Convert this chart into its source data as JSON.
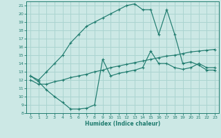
{
  "xlabel": "Humidex (Indice chaleur)",
  "background_color": "#cce8e5",
  "grid_color": "#aad4d0",
  "line_color": "#1f7b6e",
  "xlim": [
    -0.5,
    23.5
  ],
  "ylim": [
    8,
    21.5
  ],
  "xticks": [
    0,
    1,
    2,
    3,
    4,
    5,
    6,
    7,
    8,
    9,
    10,
    11,
    12,
    13,
    14,
    15,
    16,
    17,
    18,
    19,
    20,
    21,
    22,
    23
  ],
  "yticks": [
    8,
    9,
    10,
    11,
    12,
    13,
    14,
    15,
    16,
    17,
    18,
    19,
    20,
    21
  ],
  "line1_x": [
    0,
    1,
    2,
    3,
    4,
    5,
    6,
    7,
    8,
    9,
    10,
    11,
    12,
    13,
    14,
    15,
    16,
    17,
    18,
    19,
    20,
    21,
    22,
    23
  ],
  "line1_y": [
    12.5,
    12.0,
    13.0,
    14.0,
    15.0,
    16.5,
    17.5,
    18.5,
    19.0,
    19.5,
    20.0,
    20.5,
    21.0,
    21.2,
    20.5,
    20.5,
    17.5,
    20.5,
    17.5,
    14.0,
    14.2,
    13.8,
    13.2,
    13.2
  ],
  "line2_x": [
    0,
    1,
    2,
    3,
    4,
    5,
    6,
    7,
    8,
    9,
    10,
    11,
    12,
    13,
    14,
    15,
    16,
    17,
    18,
    19,
    20,
    21,
    22,
    23
  ],
  "line2_y": [
    12.0,
    11.5,
    11.5,
    11.8,
    12.0,
    12.3,
    12.5,
    12.7,
    13.0,
    13.2,
    13.5,
    13.7,
    13.9,
    14.1,
    14.3,
    14.5,
    14.7,
    14.9,
    15.0,
    15.2,
    15.4,
    15.5,
    15.6,
    15.7
  ],
  "line3_x": [
    0,
    1,
    2,
    3,
    4,
    5,
    6,
    7,
    8,
    9,
    10,
    11,
    12,
    13,
    14,
    15,
    16,
    17,
    18,
    19,
    20,
    21,
    22,
    23
  ],
  "line3_y": [
    12.5,
    11.8,
    10.8,
    10.0,
    9.3,
    8.5,
    8.5,
    8.6,
    9.0,
    14.5,
    12.5,
    12.8,
    13.0,
    13.2,
    13.5,
    15.5,
    14.0,
    14.0,
    13.5,
    13.3,
    13.5,
    14.0,
    13.5,
    13.5
  ]
}
